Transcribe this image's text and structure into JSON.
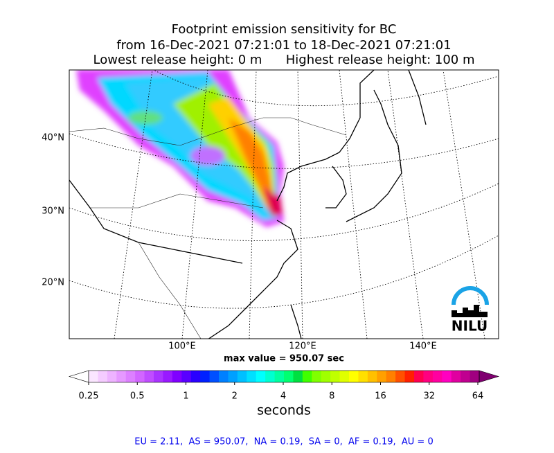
{
  "title": [
    "Footprint emission sensitivity for BC",
    "from 16-Dec-2021 07:21:01 to 18-Dec-2021 07:21:01",
    "Lowest release height: 0 m      Highest release height: 100 m"
  ],
  "map": {
    "lat_labels": [
      "40°N",
      "30°N",
      "20°N"
    ],
    "lon_labels": [
      "100°E",
      "120°E",
      "140°E"
    ],
    "logo": "NILU"
  },
  "max_value": "max value = 950.07 sec",
  "colorbar": {
    "ticks": [
      0.25,
      0.5,
      1,
      2,
      4,
      8,
      16,
      32,
      64
    ],
    "label": "seconds"
  },
  "footer": "EU = 2.11,  AS = 950.07,  NA = 0.19,  SA = 0,  AF = 0.19,  AU = 0"
}
